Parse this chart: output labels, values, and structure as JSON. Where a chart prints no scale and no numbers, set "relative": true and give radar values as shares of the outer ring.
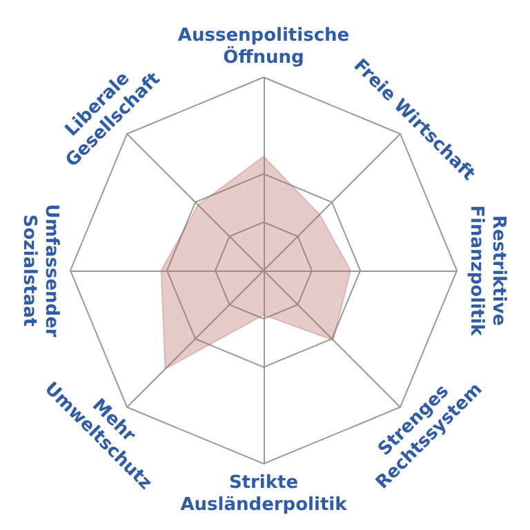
{
  "chart_data": {
    "type": "radar",
    "relative": true,
    "categories": [
      "Aussenpolitische\nÖffnung",
      "Freie Wirtschaft",
      "Restriktive\nFinanzpolitik",
      "Strenges\nRechtssystem",
      "Strikte\nAusländerpolitik",
      "Mehr\nUmweltschutz",
      "Umfassender\nSozialstaat",
      "Liberale\nGesellschaft"
    ],
    "series": [
      {
        "color": "#b86b6b",
        "values": [
          0.59,
          0.41,
          0.45,
          0.51,
          0.23,
          0.72,
          0.53,
          0.48
        ]
      }
    ]
  }
}
